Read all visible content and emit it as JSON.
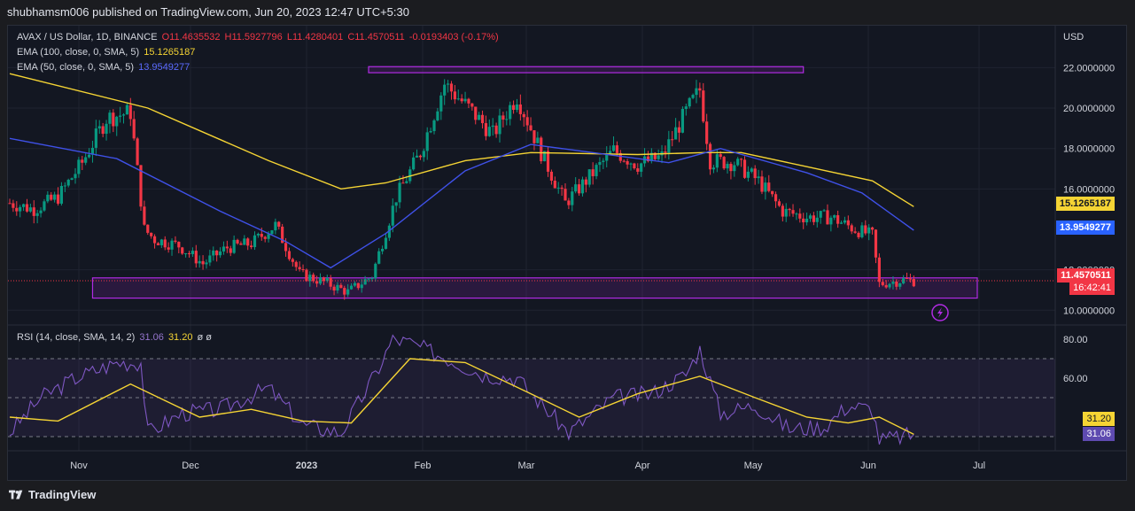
{
  "header": {
    "publisher": "shubhamsm006 published on TradingView.com, Jun 20, 2023 12:47 UTC+5:30"
  },
  "footer": {
    "brand": "TradingView"
  },
  "legend": {
    "symbol": "AVAX / US Dollar, 1D, BINANCE",
    "o": "O11.4635532",
    "h": "H11.5927796",
    "l": "L11.4280401",
    "c": "C11.4570511",
    "change": "-0.0193403 (-0.17%)",
    "ema100_label": "EMA (100, close, 0, SMA, 5)",
    "ema100_value": "15.1265187",
    "ema50_label": "EMA (50, close, 0, SMA, 5)",
    "ema50_value": "13.9549277",
    "rsi_label": "RSI (14, close, SMA, 14, 2)",
    "rsi_value": "31.06",
    "rsi_ma_value": "31.20",
    "rsi_extra": "ø ø"
  },
  "axis": {
    "currency": "USD",
    "price_ticks": [
      "22.0000000",
      "20.0000000",
      "18.0000000",
      "16.0000000",
      "12.0000000",
      "10.0000000"
    ],
    "rsi_ticks": [
      "80.00",
      "60.00"
    ],
    "x_ticks": [
      "Nov",
      "Dec",
      "2023",
      "Feb",
      "Mar",
      "Apr",
      "May",
      "Jun",
      "Jul"
    ]
  },
  "tags": {
    "ema100": "15.1265187",
    "ema50": "13.9549277",
    "last_price": "11.4570511",
    "countdown": "16:42:41",
    "rsi_ma": "31.20",
    "rsi": "31.06"
  },
  "colors": {
    "up": "#089981",
    "down": "#f23645",
    "ema100": "#f5d434",
    "ema50": "#3f51e8",
    "rsi": "#7e57c2",
    "zone": "#b02be3",
    "background": "#131722"
  },
  "chart_data": [
    {
      "type": "candlestick",
      "title": "AVAX / US Dollar, 1D, BINANCE",
      "ylabel": "USD",
      "ylim": [
        9.4,
        23.2
      ],
      "x_range": [
        "2022-10-01",
        "2023-07-31"
      ],
      "annotations": [
        {
          "type": "zone",
          "from": "2023-01-13",
          "to": "2023-05-19",
          "low": 21.75,
          "high": 22.05
        },
        {
          "type": "zone",
          "from": "2022-10-25",
          "to": "2023-07-31",
          "low": 10.6,
          "high": 11.6
        }
      ],
      "close": [
        {
          "x": "2022-10-01",
          "y": 15.3
        },
        {
          "x": "2022-10-08",
          "y": 15.0
        },
        {
          "x": "2022-10-15",
          "y": 15.6
        },
        {
          "x": "2022-10-22",
          "y": 17.3
        },
        {
          "x": "2022-10-29",
          "y": 19.5
        },
        {
          "x": "2022-11-05",
          "y": 19.8
        },
        {
          "x": "2022-11-09",
          "y": 14.0
        },
        {
          "x": "2022-11-12",
          "y": 13.5
        },
        {
          "x": "2022-11-19",
          "y": 13.2
        },
        {
          "x": "2022-11-26",
          "y": 12.3
        },
        {
          "x": "2022-12-03",
          "y": 13.1
        },
        {
          "x": "2022-12-10",
          "y": 13.3
        },
        {
          "x": "2022-12-17",
          "y": 14.2
        },
        {
          "x": "2022-12-24",
          "y": 11.8
        },
        {
          "x": "2022-12-31",
          "y": 11.4
        },
        {
          "x": "2023-01-07",
          "y": 10.9
        },
        {
          "x": "2023-01-14",
          "y": 11.7
        },
        {
          "x": "2023-01-21",
          "y": 15.6
        },
        {
          "x": "2023-01-28",
          "y": 17.8
        },
        {
          "x": "2023-02-04",
          "y": 21.2
        },
        {
          "x": "2023-02-11",
          "y": 20.0
        },
        {
          "x": "2023-02-18",
          "y": 18.7
        },
        {
          "x": "2023-02-25",
          "y": 20.6
        },
        {
          "x": "2023-03-04",
          "y": 17.8
        },
        {
          "x": "2023-03-11",
          "y": 15.3
        },
        {
          "x": "2023-03-18",
          "y": 16.6
        },
        {
          "x": "2023-03-25",
          "y": 17.9
        },
        {
          "x": "2023-04-01",
          "y": 17.2
        },
        {
          "x": "2023-04-08",
          "y": 17.6
        },
        {
          "x": "2023-04-15",
          "y": 19.8
        },
        {
          "x": "2023-04-19",
          "y": 20.9
        },
        {
          "x": "2023-04-22",
          "y": 17.4
        },
        {
          "x": "2023-04-29",
          "y": 17.3
        },
        {
          "x": "2023-05-06",
          "y": 16.4
        },
        {
          "x": "2023-05-13",
          "y": 14.9
        },
        {
          "x": "2023-05-20",
          "y": 14.6
        },
        {
          "x": "2023-05-27",
          "y": 14.6
        },
        {
          "x": "2023-06-03",
          "y": 14.0
        },
        {
          "x": "2023-06-08",
          "y": 13.7
        },
        {
          "x": "2023-06-10",
          "y": 11.3
        },
        {
          "x": "2023-06-17",
          "y": 11.5
        },
        {
          "x": "2023-06-20",
          "y": 11.4570511
        }
      ],
      "ema100": [
        {
          "x": "2022-10-01",
          "y": 21.7
        },
        {
          "x": "2022-11-10",
          "y": 20.0
        },
        {
          "x": "2022-12-15",
          "y": 17.4
        },
        {
          "x": "2023-01-05",
          "y": 16.0
        },
        {
          "x": "2023-01-18",
          "y": 16.3
        },
        {
          "x": "2023-02-10",
          "y": 17.4
        },
        {
          "x": "2023-03-01",
          "y": 17.8
        },
        {
          "x": "2023-04-01",
          "y": 17.7
        },
        {
          "x": "2023-04-20",
          "y": 17.8
        },
        {
          "x": "2023-05-01",
          "y": 17.8
        },
        {
          "x": "2023-05-20",
          "y": 17.1
        },
        {
          "x": "2023-06-08",
          "y": 16.4
        },
        {
          "x": "2023-06-20",
          "y": 15.1265187
        }
      ],
      "ema50": [
        {
          "x": "2022-10-01",
          "y": 18.5
        },
        {
          "x": "2022-11-01",
          "y": 17.5
        },
        {
          "x": "2022-12-01",
          "y": 14.9
        },
        {
          "x": "2022-12-20",
          "y": 13.4
        },
        {
          "x": "2023-01-02",
          "y": 12.1
        },
        {
          "x": "2023-01-18",
          "y": 13.8
        },
        {
          "x": "2023-02-10",
          "y": 16.9
        },
        {
          "x": "2023-03-01",
          "y": 18.2
        },
        {
          "x": "2023-04-10",
          "y": 17.3
        },
        {
          "x": "2023-04-25",
          "y": 18.0
        },
        {
          "x": "2023-05-20",
          "y": 16.8
        },
        {
          "x": "2023-06-05",
          "y": 15.8
        },
        {
          "x": "2023-06-20",
          "y": 13.9549277
        }
      ]
    },
    {
      "type": "line",
      "title": "RSI (14, close, SMA, 14, 2)",
      "ylim": [
        25,
        85
      ],
      "bands": [
        30,
        50,
        70
      ],
      "series": [
        {
          "name": "RSI",
          "points": [
            {
              "x": "2022-10-01",
              "y": 32
            },
            {
              "x": "2022-10-10",
              "y": 50
            },
            {
              "x": "2022-10-20",
              "y": 60
            },
            {
              "x": "2022-11-01",
              "y": 68
            },
            {
              "x": "2022-11-08",
              "y": 68
            },
            {
              "x": "2022-11-10",
              "y": 32
            },
            {
              "x": "2022-11-20",
              "y": 42
            },
            {
              "x": "2022-12-01",
              "y": 44
            },
            {
              "x": "2022-12-15",
              "y": 55
            },
            {
              "x": "2022-12-25",
              "y": 36
            },
            {
              "x": "2023-01-05",
              "y": 32
            },
            {
              "x": "2023-01-15",
              "y": 62
            },
            {
              "x": "2023-01-20",
              "y": 80
            },
            {
              "x": "2023-01-25",
              "y": 78
            },
            {
              "x": "2023-02-05",
              "y": 70
            },
            {
              "x": "2023-02-15",
              "y": 62
            },
            {
              "x": "2023-02-25",
              "y": 60
            },
            {
              "x": "2023-03-05",
              "y": 45
            },
            {
              "x": "2023-03-12",
              "y": 32
            },
            {
              "x": "2023-03-25",
              "y": 50
            },
            {
              "x": "2023-04-05",
              "y": 52
            },
            {
              "x": "2023-04-15",
              "y": 62
            },
            {
              "x": "2023-04-19",
              "y": 75
            },
            {
              "x": "2023-04-25",
              "y": 42
            },
            {
              "x": "2023-05-05",
              "y": 46
            },
            {
              "x": "2023-05-15",
              "y": 34
            },
            {
              "x": "2023-05-25",
              "y": 35
            },
            {
              "x": "2023-06-01",
              "y": 46
            },
            {
              "x": "2023-06-08",
              "y": 44
            },
            {
              "x": "2023-06-10",
              "y": 28
            },
            {
              "x": "2023-06-20",
              "y": 31.06
            }
          ]
        },
        {
          "name": "RSI-based MA",
          "points": [
            {
              "x": "2022-10-01",
              "y": 40
            },
            {
              "x": "2022-10-15",
              "y": 38
            },
            {
              "x": "2022-11-05",
              "y": 57
            },
            {
              "x": "2022-11-25",
              "y": 40
            },
            {
              "x": "2022-12-10",
              "y": 44
            },
            {
              "x": "2022-12-25",
              "y": 38
            },
            {
              "x": "2023-01-08",
              "y": 37
            },
            {
              "x": "2023-01-25",
              "y": 70
            },
            {
              "x": "2023-02-10",
              "y": 68
            },
            {
              "x": "2023-03-01",
              "y": 52
            },
            {
              "x": "2023-03-15",
              "y": 40
            },
            {
              "x": "2023-04-01",
              "y": 52
            },
            {
              "x": "2023-04-19",
              "y": 61
            },
            {
              "x": "2023-05-05",
              "y": 50
            },
            {
              "x": "2023-05-20",
              "y": 40
            },
            {
              "x": "2023-06-01",
              "y": 37
            },
            {
              "x": "2023-06-10",
              "y": 40
            },
            {
              "x": "2023-06-20",
              "y": 31.2
            }
          ]
        }
      ]
    }
  ]
}
